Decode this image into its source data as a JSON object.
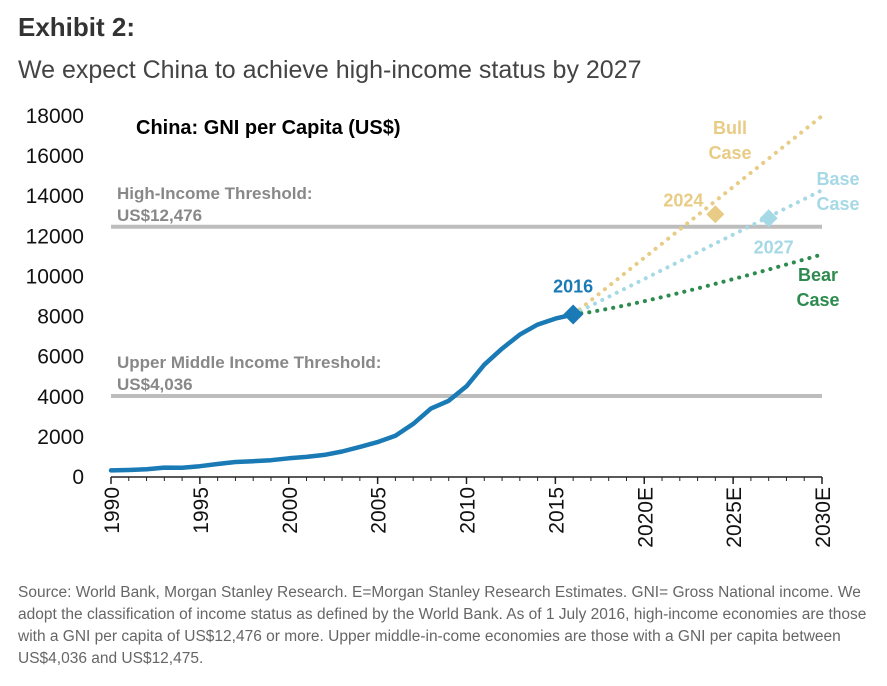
{
  "exhibit": "Exhibit 2:",
  "subtitle": "We expect China to achieve high-income status by 2027",
  "source": "Source: World Bank, Morgan Stanley Research. E=Morgan Stanley Research Estimates. GNI= Gross National income. We adopt the classification of income status as defined by the World Bank. As of 1 July 2016, high-income economies are those with a GNI per capita of US$12,476 or more. Upper middle-in-come economies are those with a GNI per capita between US$4,036 and US$12,475.",
  "colors": {
    "history": "#1a7ab5",
    "bull": "#e8cc85",
    "base": "#a6d9e6",
    "bear": "#2e8b4f",
    "threshold": "#bdbdbd"
  },
  "chart_data": {
    "type": "line",
    "title": "China: GNI per Capita (US$)",
    "ylim": [
      0,
      18000
    ],
    "xlim": [
      1990,
      2030
    ],
    "yticks": [
      "0",
      "2000",
      "4000",
      "6000",
      "8000",
      "10000",
      "12000",
      "14000",
      "16000",
      "18000"
    ],
    "xticks": [
      "1990",
      "1995",
      "2000",
      "2005",
      "2010",
      "2015",
      "2020E",
      "2025E",
      "2030E"
    ],
    "thresholds": [
      {
        "value": 12476,
        "label_line1": "High-Income Threshold:",
        "label_line2": "US$12,476"
      },
      {
        "value": 4036,
        "label_line1": "Upper Middle Income Threshold:",
        "label_line2": "US$4,036"
      }
    ],
    "series": [
      {
        "name": "History",
        "style": "solid",
        "x": [
          1990,
          1991,
          1992,
          1993,
          1994,
          1995,
          1996,
          1997,
          1998,
          1999,
          2000,
          2001,
          2002,
          2003,
          2004,
          2005,
          2006,
          2007,
          2008,
          2009,
          2010,
          2011,
          2012,
          2013,
          2014,
          2015,
          2016
        ],
        "values": [
          330,
          350,
          390,
          470,
          460,
          540,
          650,
          750,
          790,
          840,
          930,
          1000,
          1100,
          1270,
          1500,
          1740,
          2060,
          2650,
          3410,
          3800,
          4520,
          5600,
          6400,
          7100,
          7600,
          7900,
          8100
        ]
      },
      {
        "name": "Bull Case",
        "label_line1": "Bull",
        "label_line2": "Case",
        "style": "dotted",
        "x": [
          2016,
          2030
        ],
        "values": [
          8100,
          18000
        ]
      },
      {
        "name": "Base Case",
        "label_line1": "Base",
        "label_line2": "Case",
        "style": "dotted",
        "x": [
          2016,
          2030
        ],
        "values": [
          8100,
          14300
        ]
      },
      {
        "name": "Bear Case",
        "label_line1": "Bear",
        "label_line2": "Case",
        "style": "dotted",
        "x": [
          2016,
          2030
        ],
        "values": [
          8100,
          11100
        ]
      }
    ],
    "markers": [
      {
        "label": "2016",
        "x": 2016,
        "y": 8100,
        "series": "History"
      },
      {
        "label": "2024",
        "x": 2024,
        "y": 13100,
        "series": "Bull Case"
      },
      {
        "label": "2027",
        "x": 2027,
        "y": 12900,
        "series": "Base Case"
      }
    ]
  }
}
